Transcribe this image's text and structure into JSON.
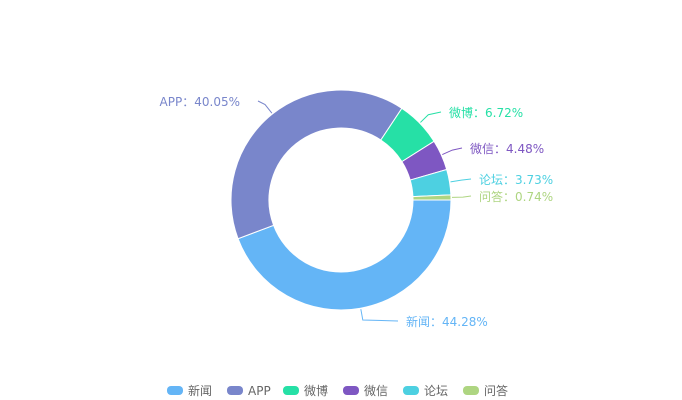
{
  "chart_data": {
    "type": "pie",
    "donut": true,
    "legend_position": "bottom-center",
    "slices": [
      {
        "name": "新闻",
        "value": 44.28,
        "label": "新闻：44.28%",
        "color": "#64b5f6"
      },
      {
        "name": "APP",
        "value": 40.05,
        "label": "APP：40.05%",
        "color": "#7986cb"
      },
      {
        "name": "微博",
        "value": 6.72,
        "label": "微博：6.72%",
        "color": "#26e0a6"
      },
      {
        "name": "微信",
        "value": 4.48,
        "label": "微信：4.48%",
        "color": "#7e57c2"
      },
      {
        "name": "论坛",
        "value": 3.73,
        "label": "论坛：3.73%",
        "color": "#4dd0e1"
      },
      {
        "name": "问答",
        "value": 0.74,
        "label": "问答：0.74%",
        "color": "#aed581"
      }
    ]
  }
}
